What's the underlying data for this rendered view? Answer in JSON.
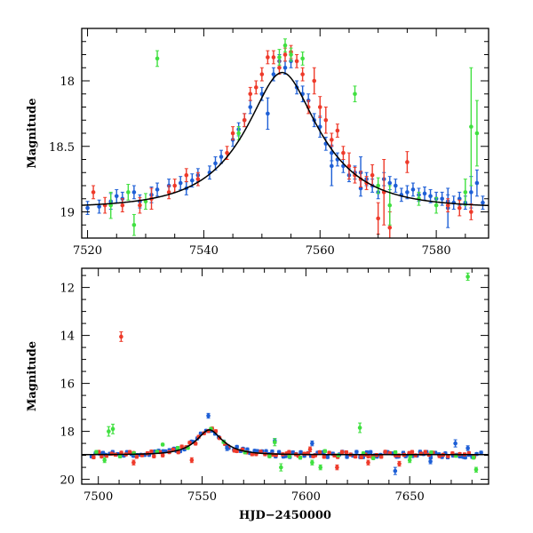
{
  "chart_data": [
    {
      "type": "scatter",
      "panel": "top",
      "xlabel": "",
      "ylabel": "Magnitude",
      "xlim": [
        7519,
        7589
      ],
      "ylim": [
        19.2,
        17.6
      ],
      "y_inverted": true,
      "x_ticks": [
        7520,
        7540,
        7560,
        7580
      ],
      "y_ticks": [
        18,
        18.5,
        19
      ],
      "y_tick_labels": [
        "18",
        "18.5",
        "19"
      ],
      "model_curve": {
        "type": "microlensing",
        "t0": 7553.5,
        "u0": 0.41,
        "tE": 12,
        "baseline": 18.97
      },
      "series": [
        {
          "color": "#1e5fd6",
          "points": [
            [
              7520,
              18.97,
              0.05
            ],
            [
              7522,
              18.96,
              0.05
            ],
            [
              7524,
              18.92,
              0.06
            ],
            [
              7525,
              18.88,
              0.05
            ],
            [
              7526,
              18.9,
              0.05
            ],
            [
              7528,
              18.85,
              0.05
            ],
            [
              7529,
              18.92,
              0.05
            ],
            [
              7531,
              18.87,
              0.06
            ],
            [
              7532,
              18.83,
              0.05
            ],
            [
              7534,
              18.8,
              0.05
            ],
            [
              7536,
              18.78,
              0.05
            ],
            [
              7537,
              18.82,
              0.05
            ],
            [
              7538,
              18.76,
              0.05
            ],
            [
              7539,
              18.72,
              0.05
            ],
            [
              7541,
              18.7,
              0.05
            ],
            [
              7542,
              18.63,
              0.05
            ],
            [
              7543,
              18.58,
              0.05
            ],
            [
              7545,
              18.45,
              0.05
            ],
            [
              7546,
              18.37,
              0.05
            ],
            [
              7547,
              18.3,
              0.05
            ],
            [
              7548,
              18.2,
              0.05
            ],
            [
              7550,
              18.1,
              0.05
            ],
            [
              7551,
              18.25,
              0.12
            ],
            [
              7552,
              17.95,
              0.05
            ],
            [
              7553,
              17.85,
              0.05
            ],
            [
              7554,
              17.9,
              0.05
            ],
            [
              7555,
              17.85,
              0.05
            ],
            [
              7556,
              18.05,
              0.05
            ],
            [
              7557,
              18.1,
              0.06
            ],
            [
              7558,
              18.15,
              0.05
            ],
            [
              7559,
              18.3,
              0.05
            ],
            [
              7560,
              18.35,
              0.08
            ],
            [
              7561,
              18.48,
              0.05
            ],
            [
              7562,
              18.55,
              0.06
            ],
            [
              7563,
              18.6,
              0.05
            ],
            [
              7564,
              18.65,
              0.05
            ],
            [
              7565,
              18.72,
              0.05
            ],
            [
              7566,
              18.7,
              0.05
            ],
            [
              7567,
              18.82,
              0.06
            ],
            [
              7568,
              18.75,
              0.05
            ],
            [
              7569,
              18.8,
              0.05
            ],
            [
              7570,
              18.85,
              0.05
            ],
            [
              7571,
              18.75,
              0.05
            ],
            [
              7572,
              18.78,
              0.05
            ],
            [
              7573,
              18.8,
              0.05
            ],
            [
              7574,
              18.87,
              0.05
            ],
            [
              7575,
              18.85,
              0.05
            ],
            [
              7576,
              18.83,
              0.05
            ],
            [
              7577,
              18.87,
              0.05
            ],
            [
              7578,
              18.86,
              0.05
            ],
            [
              7579,
              18.88,
              0.05
            ],
            [
              7580,
              18.9,
              0.05
            ],
            [
              7581,
              18.9,
              0.05
            ],
            [
              7582,
              18.92,
              0.05
            ],
            [
              7583,
              18.93,
              0.05
            ],
            [
              7584,
              18.9,
              0.05
            ],
            [
              7585,
              18.93,
              0.05
            ],
            [
              7586,
              18.85,
              0.12
            ],
            [
              7587,
              18.78,
              0.1
            ],
            [
              7588,
              18.93,
              0.05
            ],
            [
              7562,
              18.65,
              0.15
            ],
            [
              7567,
              18.7,
              0.12
            ],
            [
              7582,
              18.97,
              0.15
            ]
          ]
        },
        {
          "color": "#ee3a2a",
          "points": [
            [
              7521,
              18.85,
              0.05
            ],
            [
              7523,
              18.95,
              0.06
            ],
            [
              7526,
              18.95,
              0.05
            ],
            [
              7529,
              18.95,
              0.06
            ],
            [
              7531,
              18.9,
              0.08
            ],
            [
              7534,
              18.85,
              0.05
            ],
            [
              7535,
              18.8,
              0.05
            ],
            [
              7537,
              18.72,
              0.05
            ],
            [
              7539,
              18.75,
              0.05
            ],
            [
              7544,
              18.55,
              0.05
            ],
            [
              7545,
              18.4,
              0.05
            ],
            [
              7547,
              18.3,
              0.05
            ],
            [
              7548,
              18.1,
              0.05
            ],
            [
              7549,
              18.05,
              0.05
            ],
            [
              7550,
              17.95,
              0.05
            ],
            [
              7551,
              17.82,
              0.05
            ],
            [
              7552,
              17.82,
              0.05
            ],
            [
              7553,
              17.9,
              0.05
            ],
            [
              7554,
              17.8,
              0.05
            ],
            [
              7555,
              17.78,
              0.05
            ],
            [
              7556,
              17.85,
              0.05
            ],
            [
              7557,
              17.95,
              0.05
            ],
            [
              7558,
              18.2,
              0.05
            ],
            [
              7559,
              18.0,
              0.1
            ],
            [
              7560,
              18.2,
              0.08
            ],
            [
              7561,
              18.3,
              0.1
            ],
            [
              7562,
              18.45,
              0.05
            ],
            [
              7563,
              18.38,
              0.05
            ],
            [
              7564,
              18.55,
              0.05
            ],
            [
              7566,
              18.72,
              0.06
            ],
            [
              7567,
              18.75,
              0.06
            ],
            [
              7568,
              18.78,
              0.05
            ],
            [
              7569,
              18.72,
              0.08
            ],
            [
              7570,
              19.05,
              0.12
            ],
            [
              7571,
              18.85,
              0.25
            ],
            [
              7575,
              18.62,
              0.08
            ],
            [
              7582,
              18.95,
              0.05
            ],
            [
              7584,
              18.97,
              0.06
            ],
            [
              7586,
              19.0,
              0.06
            ],
            [
              7572,
              19.12,
              0.12
            ],
            [
              7565,
              18.65,
              0.1
            ]
          ]
        },
        {
          "color": "#40e040",
          "points": [
            [
              7524,
              18.95,
              0.1
            ],
            [
              7527,
              18.85,
              0.06
            ],
            [
              7528,
              19.1,
              0.08
            ],
            [
              7530,
              18.92,
              0.06
            ],
            [
              7532,
              17.83,
              0.06
            ],
            [
              7546,
              18.4,
              0.05
            ],
            [
              7553,
              17.82,
              0.06
            ],
            [
              7554,
              17.73,
              0.05
            ],
            [
              7555,
              17.8,
              0.05
            ],
            [
              7557,
              17.83,
              0.05
            ],
            [
              7566,
              18.1,
              0.06
            ],
            [
              7572,
              18.95,
              0.15
            ],
            [
              7577,
              18.9,
              0.05
            ],
            [
              7580,
              18.95,
              0.06
            ],
            [
              7585,
              18.85,
              0.1
            ],
            [
              7586,
              18.35,
              0.45
            ],
            [
              7587,
              18.4,
              0.25
            ],
            [
              7570,
              18.8,
              0.06
            ]
          ]
        }
      ]
    },
    {
      "type": "scatter",
      "panel": "bottom",
      "xlabel": "HJD−2450000",
      "ylabel": "Magnitude",
      "xlim": [
        7492,
        7688
      ],
      "ylim": [
        20.2,
        11.2
      ],
      "y_inverted": true,
      "x_ticks": [
        7500,
        7550,
        7600,
        7650
      ],
      "y_ticks": [
        12,
        14,
        16,
        18,
        20
      ],
      "y_tick_labels": [
        "12",
        "14",
        "16",
        "18",
        "20"
      ],
      "model_curve": {
        "type": "microlensing",
        "t0": 7553.5,
        "u0": 0.41,
        "tE": 12,
        "baseline": 18.97
      },
      "outliers": [
        {
          "color": "#ee3a2a",
          "points": [
            [
              7511,
              14.05,
              0.2
            ],
            [
              7517,
              19.3,
              0.1
            ],
            [
              7545,
              19.2,
              0.1
            ],
            [
              7602,
              18.75,
              0.1
            ],
            [
              7615,
              19.5,
              0.1
            ],
            [
              7630,
              19.3,
              0.1
            ],
            [
              7645,
              19.35,
              0.1
            ]
          ]
        },
        {
          "color": "#1e5fd6",
          "points": [
            [
              7553,
              17.35,
              0.1
            ],
            [
              7562,
              18.7,
              0.1
            ],
            [
              7585,
              18.4,
              0.1
            ],
            [
              7603,
              18.5,
              0.1
            ],
            [
              7643,
              19.65,
              0.15
            ],
            [
              7660,
              19.25,
              0.1
            ],
            [
              7672,
              18.5,
              0.15
            ],
            [
              7678,
              18.7,
              0.1
            ]
          ]
        },
        {
          "color": "#40e040",
          "points": [
            [
              7505,
              18.0,
              0.2
            ],
            [
              7507,
              17.9,
              0.2
            ],
            [
              7503,
              19.2,
              0.1
            ],
            [
              7531,
              18.55,
              0.05
            ],
            [
              7585,
              18.45,
              0.15
            ],
            [
              7588,
              19.5,
              0.15
            ],
            [
              7603,
              19.3,
              0.1
            ],
            [
              7607,
              19.5,
              0.1
            ],
            [
              7626,
              17.85,
              0.2
            ],
            [
              7650,
              19.2,
              0.1
            ],
            [
              7678,
              11.55,
              0.15
            ],
            [
              7682,
              19.6,
              0.1
            ]
          ]
        }
      ],
      "dense_series": [
        {
          "color": "#1e5fd6",
          "t_start": 7497,
          "t_end": 7684,
          "step": 1.7,
          "scatter": 0.12
        },
        {
          "color": "#ee3a2a",
          "t_start": 7498,
          "t_end": 7682,
          "step": 2.1,
          "scatter": 0.12
        },
        {
          "color": "#40e040",
          "t_start": 7500,
          "t_end": 7680,
          "step": 9,
          "scatter": 0.15
        }
      ]
    }
  ]
}
